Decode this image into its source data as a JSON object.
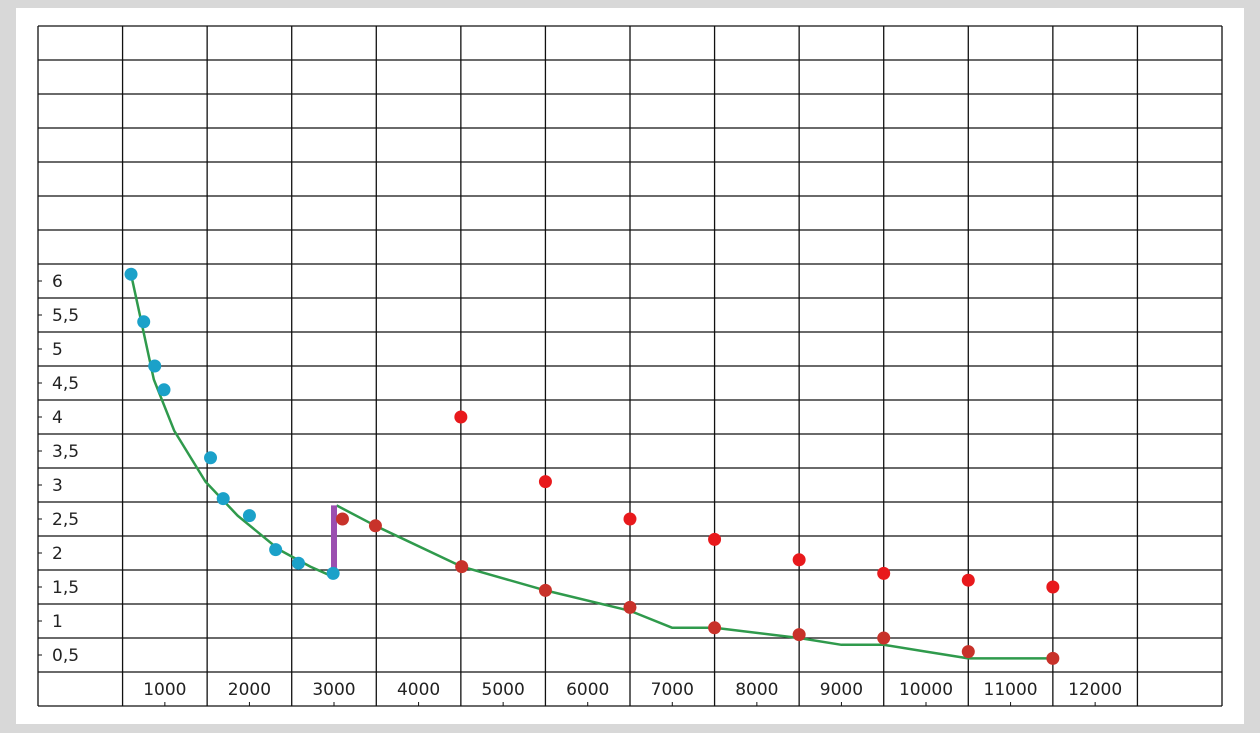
{
  "chart_data": {
    "type": "scatter",
    "xlim": [
      -500,
      13500
    ],
    "ylim": [
      -0.25,
      9.75
    ],
    "xticks": [
      1000,
      2000,
      3000,
      4000,
      5000,
      6000,
      7000,
      8000,
      9000,
      10000,
      11000,
      12000
    ],
    "yticks": [
      {
        "value": 0.5,
        "label": "0,5"
      },
      1,
      {
        "value": 1.5,
        "label": "1,5"
      },
      2,
      {
        "value": 2.5,
        "label": "2,5"
      },
      3,
      {
        "value": 3.5,
        "label": "3,5"
      },
      4,
      {
        "value": 4.5,
        "label": "4,5"
      },
      5,
      {
        "value": 5.5,
        "label": "5,5"
      },
      6
    ],
    "series": [
      {
        "type": "line",
        "color": "#2f9a4c",
        "x": [
          600,
          870,
          1110,
          1480,
          1860,
          2350,
          2720,
          2990
        ],
        "values": [
          6.1,
          4.55,
          3.8,
          3.05,
          2.55,
          2.05,
          1.8,
          1.65
        ]
      },
      {
        "type": "line",
        "color": "#2f9a4c",
        "x": [
          3030,
          3490,
          4510,
          5500,
          6500,
          7000,
          7500,
          8500,
          9000,
          9500,
          10000,
          10500,
          11500
        ],
        "values": [
          2.7,
          2.4,
          1.8,
          1.45,
          1.15,
          0.9,
          0.9,
          0.75,
          0.65,
          0.65,
          0.55,
          0.45,
          0.45
        ]
      },
      {
        "type": "line",
        "color": "#9b4fb0",
        "x": [
          3000,
          3000
        ],
        "values": [
          1.7,
          2.7
        ]
      },
      {
        "type": "scatter",
        "color": "#1ba1c9",
        "x": [
          600,
          750,
          880,
          990,
          1540,
          1690,
          2000,
          2310,
          2580,
          2990
        ],
        "values": [
          6.1,
          5.4,
          4.75,
          4.4,
          3.4,
          2.8,
          2.55,
          2.05,
          1.85,
          1.7
        ]
      },
      {
        "type": "scatter",
        "color": "#c8322a",
        "x": [
          3100,
          3490,
          4510,
          5500,
          6500,
          7500,
          8500,
          9500,
          10500,
          11500
        ],
        "values": [
          2.5,
          2.4,
          1.8,
          1.45,
          1.2,
          0.9,
          0.8,
          0.75,
          0.55,
          0.45
        ]
      },
      {
        "type": "scatter",
        "color": "#e8191c",
        "x": [
          4500,
          5500,
          6500,
          7500,
          8500,
          9500,
          10500,
          11500
        ],
        "values": [
          4,
          3.05,
          2.5,
          2.2,
          1.9,
          1.7,
          1.6,
          1.5
        ]
      }
    ]
  }
}
